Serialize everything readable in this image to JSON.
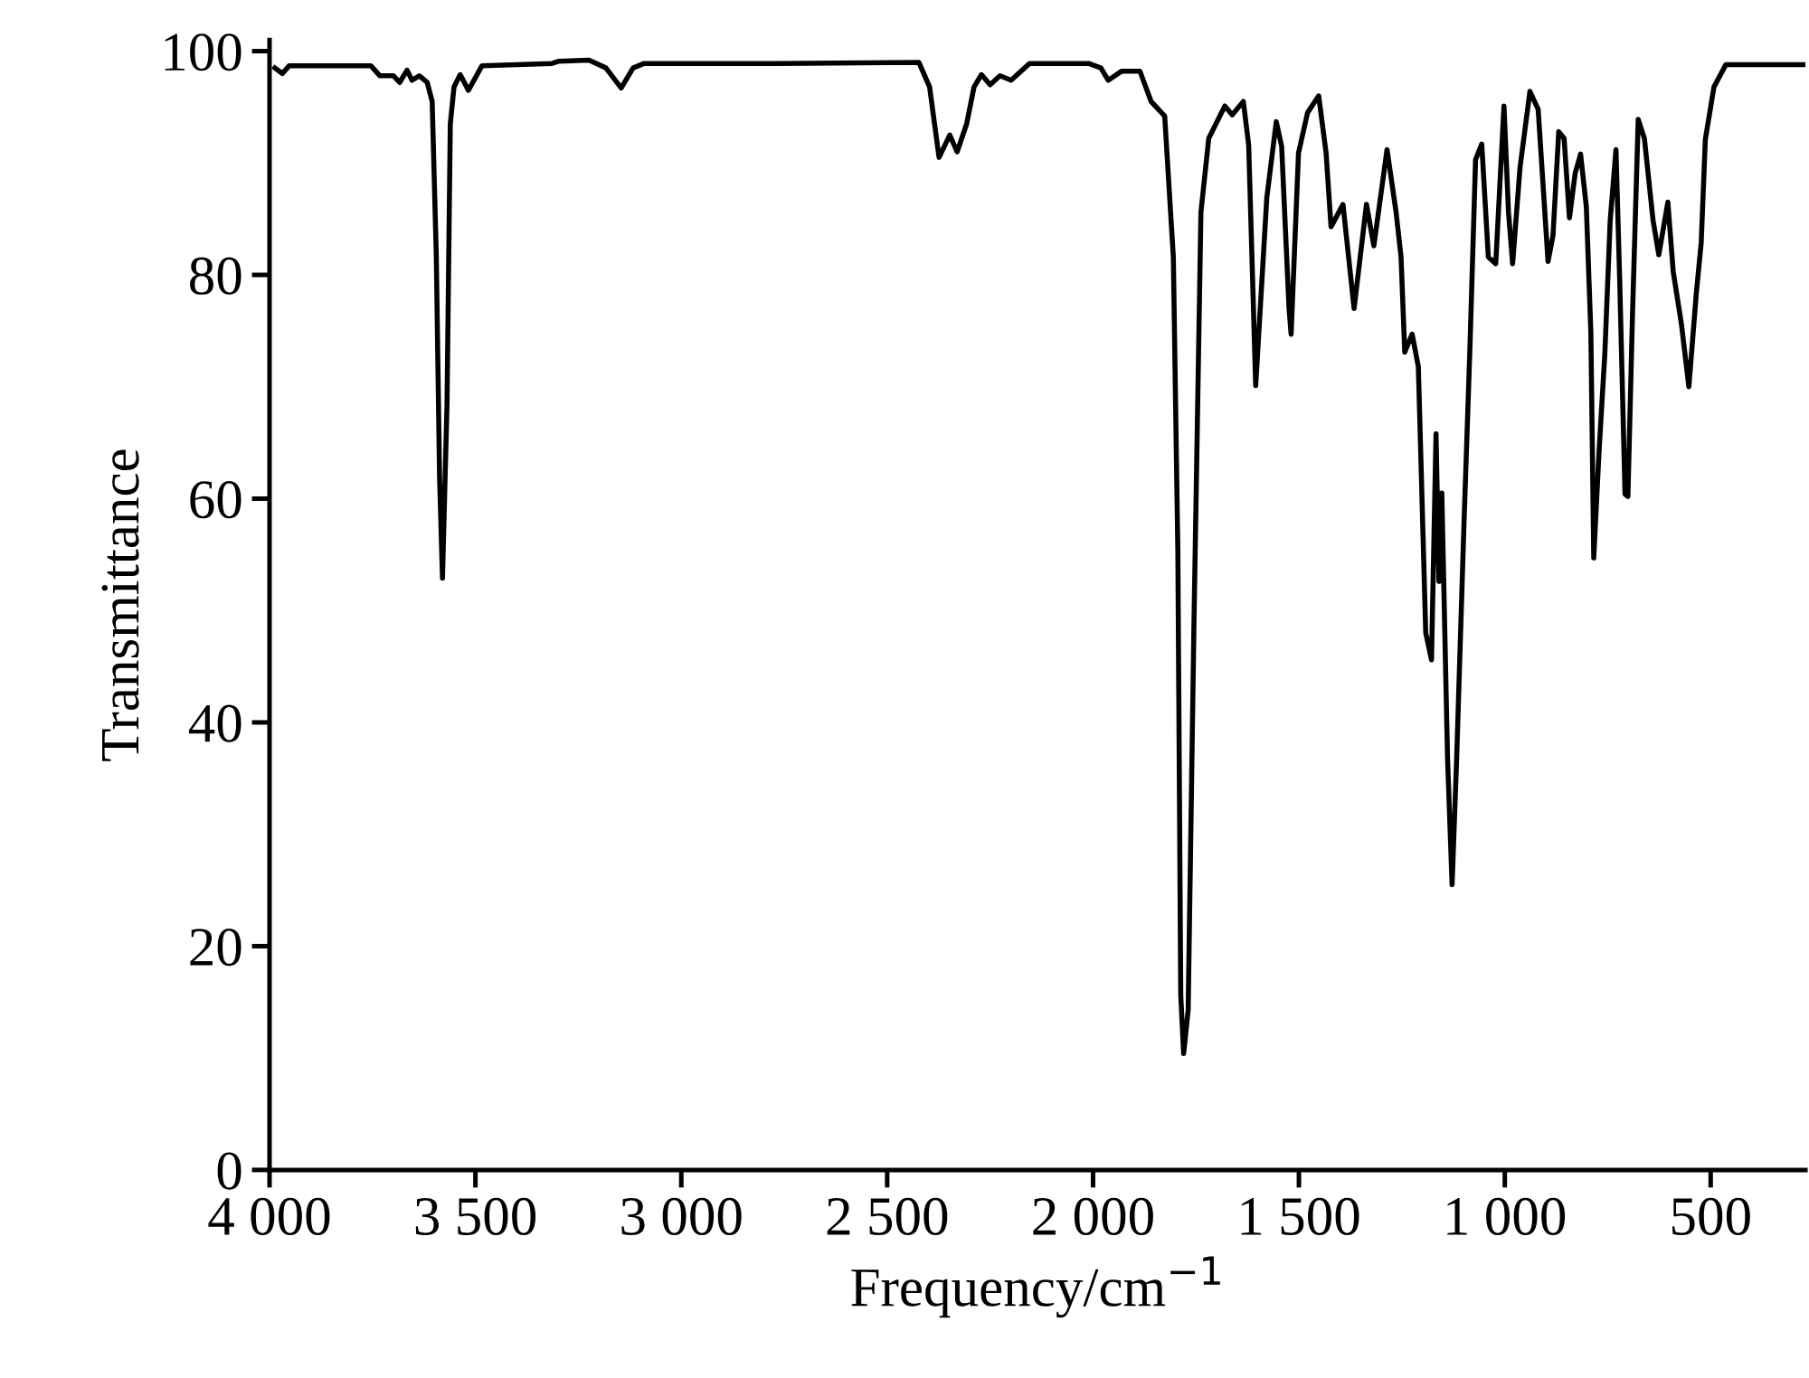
{
  "chart_data": {
    "type": "line",
    "xlabel": "Frequency/cm$^{−1}$",
    "ylabel": "Transmittance",
    "xlim": [
      4000,
      270
    ],
    "ylim": [
      0,
      101
    ],
    "xticks": [
      {
        "value": 4000,
        "label": "4 000"
      },
      {
        "value": 3500,
        "label": "3 500"
      },
      {
        "value": 3000,
        "label": "3 000"
      },
      {
        "value": 2500,
        "label": "2 500"
      },
      {
        "value": 2000,
        "label": "2 000"
      },
      {
        "value": 1500,
        "label": "1 500"
      },
      {
        "value": 1000,
        "label": "1 000"
      },
      500
    ],
    "yticks": [
      0,
      20,
      40,
      60,
      80,
      100
    ],
    "grid": false,
    "marker": "none",
    "line_style": "solid",
    "series": [
      {
        "color": "#000000",
        "x": [
          3987,
          3969,
          3952,
          3754,
          3732,
          3699,
          3684,
          3666,
          3654,
          3636,
          3617,
          3605,
          3595,
          3587,
          3580,
          3569,
          3561,
          3552,
          3537,
          3517,
          3484,
          3314,
          3297,
          3224,
          3183,
          3146,
          3117,
          3090,
          2765,
          2423,
          2397,
          2374,
          2348,
          2330,
          2307,
          2289,
          2271,
          2250,
          2226,
          2199,
          2154,
          2011,
          1981,
          1963,
          1931,
          1886,
          1859,
          1826,
          1805,
          1794,
          1787,
          1780,
          1769,
          1755,
          1738,
          1719,
          1680,
          1662,
          1635,
          1622,
          1605,
          1578,
          1555,
          1542,
          1524,
          1519,
          1501,
          1479,
          1452,
          1434,
          1422,
          1393,
          1366,
          1336,
          1318,
          1286,
          1264,
          1252,
          1243,
          1225,
          1210,
          1192,
          1178,
          1167,
          1160,
          1153,
          1139,
          1128,
          1117,
          1099,
          1085,
          1071,
          1056,
          1040,
          1022,
          1002,
          991,
          981,
          963,
          939,
          919,
          895,
          883,
          869,
          856,
          843,
          829,
          816,
          802,
          791,
          784,
          771,
          757,
          744,
          730,
          721,
          708,
          701,
          690,
          676,
          661,
          640,
          626,
          604,
          591,
          571,
          553,
          535,
          523,
          513,
          492,
          463,
          270
        ],
        "values": [
          98.5,
          98.0,
          98.7,
          98.7,
          97.8,
          97.8,
          97.2,
          98.3,
          97.4,
          97.8,
          97.2,
          95.5,
          81.7,
          61.8,
          52.9,
          68.4,
          93.5,
          96.8,
          97.9,
          96.5,
          98.7,
          98.9,
          99.1,
          99.2,
          98.5,
          96.7,
          98.5,
          98.9,
          98.9,
          99.0,
          96.8,
          90.5,
          92.5,
          91.0,
          93.5,
          96.8,
          97.9,
          97.0,
          97.8,
          97.4,
          98.9,
          98.9,
          98.5,
          97.4,
          98.2,
          98.2,
          95.5,
          94.2,
          81.6,
          55.2,
          15.6,
          10.4,
          14.3,
          48.6,
          85.6,
          92.2,
          95.1,
          94.3,
          95.5,
          91.6,
          70.1,
          86.9,
          93.7,
          91.5,
          77.0,
          74.7,
          90.9,
          94.5,
          96.0,
          90.9,
          84.3,
          86.3,
          77.0,
          86.3,
          82.6,
          91.2,
          85.6,
          81.6,
          73.1,
          74.7,
          71.8,
          48.0,
          45.6,
          65.8,
          52.6,
          60.5,
          36.7,
          25.5,
          36.7,
          57.9,
          73.1,
          90.3,
          91.7,
          81.6,
          81.0,
          95.1,
          85.6,
          81.0,
          89.6,
          96.4,
          94.8,
          81.2,
          83.5,
          92.8,
          92.2,
          85.1,
          89.1,
          90.8,
          86.1,
          74.9,
          54.7,
          64.3,
          73.0,
          84.9,
          91.2,
          79.6,
          60.4,
          60.2,
          76.3,
          93.9,
          92.2,
          84.9,
          81.8,
          86.5,
          80.3,
          75.6,
          70.0,
          78.3,
          82.9,
          92.1,
          96.8,
          98.8,
          98.8
        ]
      }
    ]
  }
}
